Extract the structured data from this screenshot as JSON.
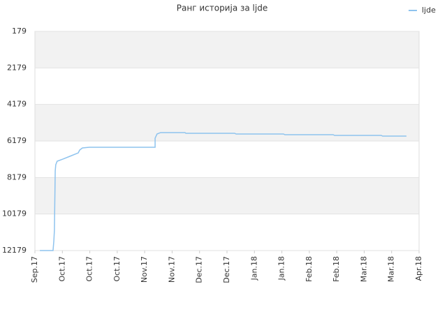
{
  "chart_data": {
    "type": "line",
    "title": "Ранг историја за ljde",
    "x": [
      0.18,
      0.66,
      0.69,
      0.71,
      0.74,
      0.76,
      0.81,
      1.02,
      1.27,
      1.58,
      1.63,
      1.73,
      1.99,
      4.38,
      4.38,
      4.45,
      4.58,
      5.47,
      5.5,
      7.28,
      7.33,
      9.06,
      9.11,
      10.87,
      10.92,
      12.62,
      12.67,
      13.54
    ],
    "series": [
      {
        "name": "ljde",
        "color": "#8ec3ee",
        "values": [
          12179,
          12179,
          11644,
          11070,
          7822,
          7478,
          7287,
          7172,
          7020,
          6829,
          6676,
          6561,
          6523,
          6523,
          6026,
          5797,
          5720,
          5720,
          5758,
          5758,
          5797,
          5797,
          5835,
          5835,
          5873,
          5873,
          5911,
          5911
        ]
      }
    ],
    "xlim": [
      0,
      14
    ],
    "xticks": [
      {
        "value": 0,
        "label": "Sep.17"
      },
      {
        "value": 1,
        "label": "Oct.17"
      },
      {
        "value": 2,
        "label": "Oct.17"
      },
      {
        "value": 3,
        "label": "Oct.17"
      },
      {
        "value": 4,
        "label": "Nov.17"
      },
      {
        "value": 5,
        "label": "Nov.17"
      },
      {
        "value": 6,
        "label": "Dec.17"
      },
      {
        "value": 7,
        "label": "Dec.17"
      },
      {
        "value": 8,
        "label": "Jan.18"
      },
      {
        "value": 9,
        "label": "Jan.18"
      },
      {
        "value": 10,
        "label": "Feb.18"
      },
      {
        "value": 11,
        "label": "Feb.18"
      },
      {
        "value": 12,
        "label": "Mar.18"
      },
      {
        "value": 13,
        "label": "Mar.18"
      },
      {
        "value": 14,
        "label": "Apr.18"
      }
    ],
    "ylim": [
      179,
      12179
    ],
    "y_inverted": true,
    "yticks": [
      179,
      2179,
      4179,
      6179,
      8179,
      10179,
      12179
    ],
    "grid": true,
    "legend": "top-right"
  }
}
